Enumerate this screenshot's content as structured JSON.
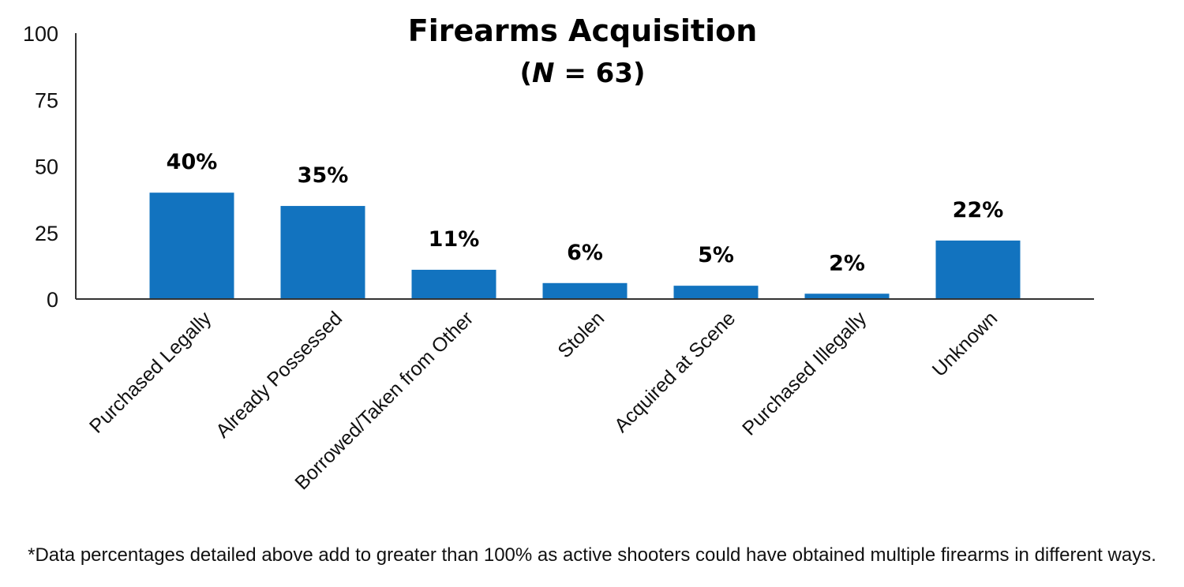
{
  "chart_data": {
    "type": "bar",
    "title": "Firearms Acquisition",
    "subtitle_prefix": "(",
    "subtitle_var": "N",
    "subtitle_rest": " = 63)",
    "categories": [
      "Purchased Legally",
      "Already Possessed",
      "Borrowed/Taken from Other",
      "Stolen",
      "Acquired at Scene",
      "Purchased Illegally",
      "Unknown"
    ],
    "values": [
      40,
      35,
      11,
      6,
      5,
      2,
      22
    ],
    "data_labels": [
      "40%",
      "35%",
      "11%",
      "6%",
      "5%",
      "2%",
      "22%"
    ],
    "yticks": [
      "0",
      "25",
      "50",
      "75",
      "100"
    ],
    "ylim": [
      0,
      100
    ],
    "xlabel": "",
    "ylabel": "",
    "grid": false,
    "bar_color": "#1273BF"
  },
  "footnote": "*Data percentages detailed above add to greater than 100% as active shooters could have obtained multiple firearms in different ways."
}
